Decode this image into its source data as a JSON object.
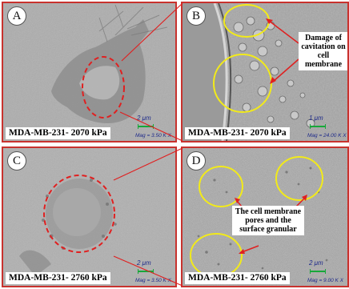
{
  "panels": {
    "A": {
      "letter": "A",
      "caption": "MDA-MB-231- 2070 kPa",
      "scale": "2 μm",
      "mag": "Mag = 3.50 K X"
    },
    "B": {
      "letter": "B",
      "caption": "MDA-MB-231- 2070 kPa",
      "scale": "1 μm",
      "mag": "Mag = 24.00 K X",
      "annotation": "Damage of cavitation on cell membrane"
    },
    "C": {
      "letter": "C",
      "caption": "MDA-MB-231- 2760 kPa",
      "scale": "2 μm",
      "mag": "Mag = 3.50 K X"
    },
    "D": {
      "letter": "D",
      "caption": "MDA-MB-231- 2760 kPa",
      "scale": "2 μm",
      "mag": "Mag = 9.00 K X",
      "annotation": "The cell membrane pores and the surface granular"
    }
  },
  "colors": {
    "frame": "#c8322e",
    "circle_A_C": "#e02020",
    "circle_B_D": "#f2ea1a",
    "arrow": "#e02020",
    "scalebar": "#18a83a"
  }
}
